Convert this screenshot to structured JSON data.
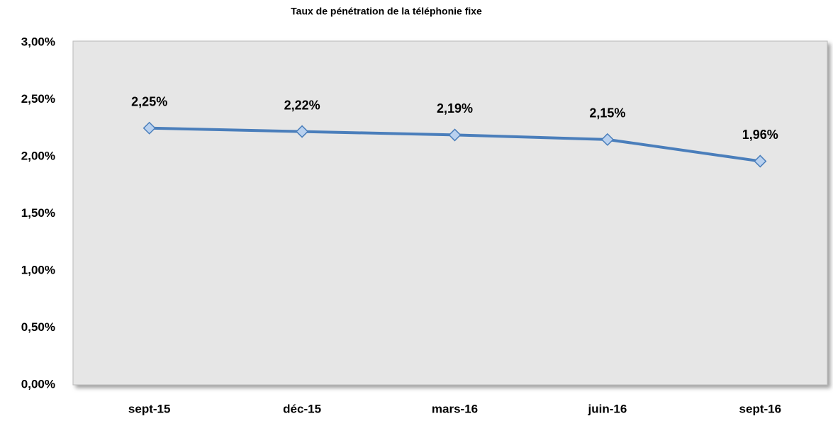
{
  "chart_data": {
    "type": "line",
    "title": "Taux de pénétration de la téléphonie fixe",
    "categories": [
      "sept-15",
      "déc-15",
      "mars-16",
      "juin-16",
      "sept-16"
    ],
    "series": [
      {
        "name": "Taux de pénétration",
        "color": "#4a7ebb",
        "values": [
          2.25,
          2.22,
          2.19,
          2.15,
          1.96
        ],
        "value_labels": [
          "2,25%",
          "2,22%",
          "2,19%",
          "2,15%",
          "1,96%"
        ]
      }
    ],
    "ylim": [
      0,
      3
    ],
    "yticks": [
      {
        "value": 0,
        "label": "0,00%"
      },
      {
        "value": 0.5,
        "label": "0,50%"
      },
      {
        "value": 1,
        "label": "1,00%"
      },
      {
        "value": 1.5,
        "label": "1,50%"
      },
      {
        "value": 2,
        "label": "2,00%"
      },
      {
        "value": 2.5,
        "label": "2,50%"
      },
      {
        "value": 3,
        "label": "3,00%"
      }
    ],
    "grid": false
  }
}
